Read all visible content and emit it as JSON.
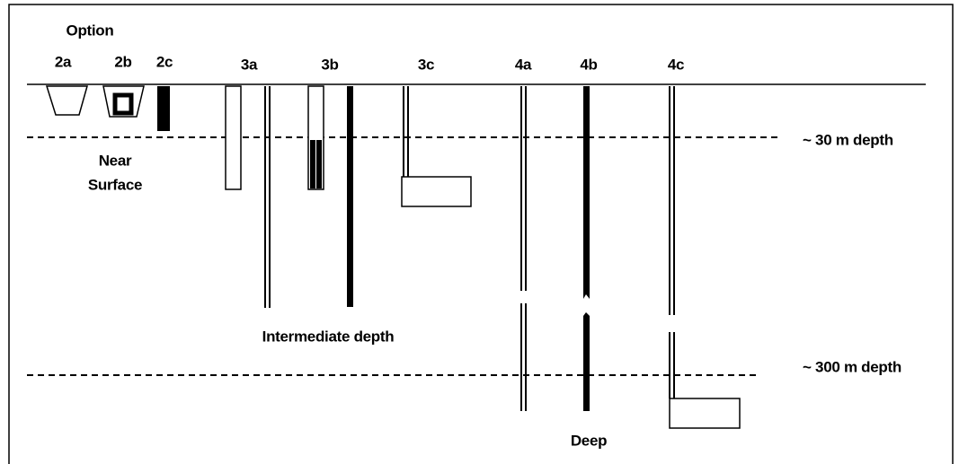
{
  "title": "Option",
  "options": [
    {
      "label": "2a"
    },
    {
      "label": "2b"
    },
    {
      "label": "2c"
    },
    {
      "label": "3a"
    },
    {
      "label": "3b"
    },
    {
      "label": "3c"
    },
    {
      "label": "4a"
    },
    {
      "label": "4b"
    },
    {
      "label": "4c"
    }
  ],
  "zones": [
    {
      "label": [
        "Near",
        "Surface"
      ]
    },
    {
      "label": "Intermediate depth"
    },
    {
      "label": "Deep"
    }
  ],
  "depth_markers": [
    {
      "label": "~ 30 m depth"
    },
    {
      "label": "~ 300 m depth"
    }
  ]
}
